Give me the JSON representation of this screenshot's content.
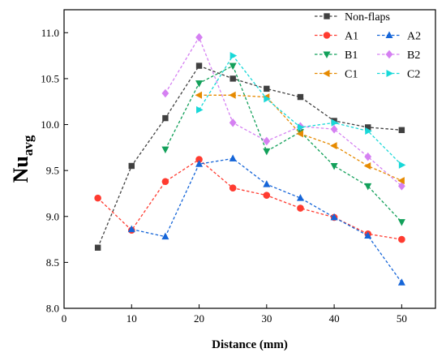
{
  "chart_data": {
    "type": "line",
    "xlabel": "Distance (mm)",
    "ylabel_main": "Nu",
    "ylabel_sub": "avg",
    "xlim": [
      0,
      55
    ],
    "ylim": [
      8.0,
      11.25
    ],
    "xticks": [
      0,
      10,
      20,
      30,
      40,
      50
    ],
    "xtick_labels": [
      "0",
      "10",
      "20",
      "30",
      "40",
      "50"
    ],
    "yticks": [
      8.0,
      8.5,
      9.0,
      9.5,
      10.0,
      10.5,
      11.0
    ],
    "ytick_labels": [
      "8.0",
      "8.5",
      "9.0",
      "9.5",
      "10.0",
      "10.5",
      "11.0"
    ],
    "line_style": "dashed",
    "legend_position": "top-right",
    "series": [
      {
        "name": "Non-flaps",
        "color": "#404040",
        "marker": "square",
        "x": [
          5,
          10,
          15,
          20,
          25,
          30,
          35,
          40,
          45,
          50
        ],
        "y": [
          8.66,
          9.55,
          10.07,
          10.64,
          10.5,
          10.39,
          10.3,
          10.04,
          9.97,
          9.94
        ]
      },
      {
        "name": "A1",
        "color": "#ff3b30",
        "marker": "circle",
        "x": [
          5,
          10,
          15,
          20,
          25,
          30,
          35,
          40,
          45,
          50
        ],
        "y": [
          9.2,
          8.85,
          9.38,
          9.62,
          9.31,
          9.23,
          9.09,
          8.99,
          8.81,
          8.75
        ]
      },
      {
        "name": "A2",
        "color": "#1565d8",
        "marker": "triangle-up",
        "x": [
          10,
          15,
          20,
          25,
          30,
          35,
          40,
          45,
          50
        ],
        "y": [
          8.86,
          8.78,
          9.57,
          9.63,
          9.35,
          9.2,
          8.99,
          8.79,
          8.28
        ]
      },
      {
        "name": "B1",
        "color": "#12a05a",
        "marker": "triangle-down",
        "x": [
          15,
          20,
          25,
          30,
          35,
          40,
          45,
          50
        ],
        "y": [
          9.73,
          10.45,
          10.64,
          9.71,
          9.92,
          9.55,
          9.33,
          8.94
        ]
      },
      {
        "name": "B2",
        "color": "#d580f2",
        "marker": "diamond",
        "x": [
          15,
          20,
          25,
          30,
          35,
          40,
          45,
          50
        ],
        "y": [
          10.34,
          10.95,
          10.02,
          9.82,
          9.98,
          9.95,
          9.65,
          9.33
        ]
      },
      {
        "name": "C1",
        "color": "#e68a00",
        "marker": "triangle-left",
        "x": [
          20,
          25,
          30,
          35,
          40,
          45,
          50
        ],
        "y": [
          10.32,
          10.32,
          10.3,
          9.9,
          9.77,
          9.55,
          9.39
        ]
      },
      {
        "name": "C2",
        "color": "#18d8d8",
        "marker": "triangle-right",
        "x": [
          20,
          25,
          30,
          35,
          40,
          45,
          50
        ],
        "y": [
          10.16,
          10.75,
          10.28,
          9.97,
          10.02,
          9.93,
          9.56
        ]
      }
    ]
  }
}
